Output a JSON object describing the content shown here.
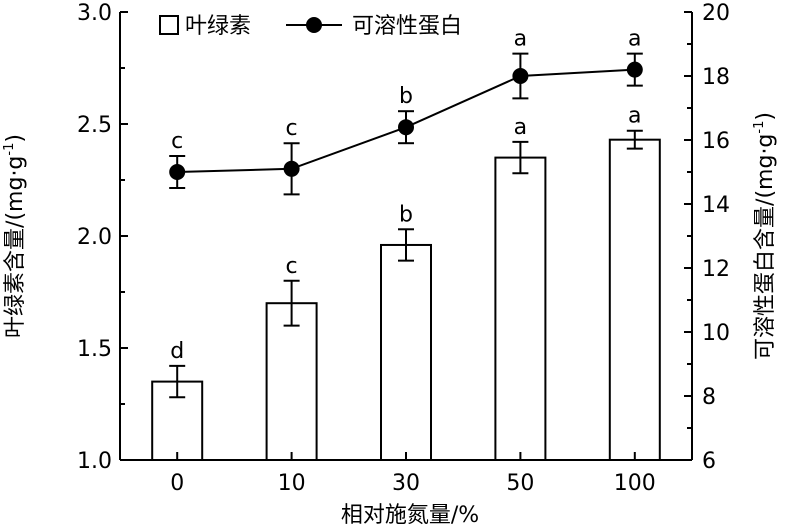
{
  "chart_data": {
    "type": "bar+line",
    "categories": [
      "0",
      "10",
      "30",
      "50",
      "100"
    ],
    "xlabel": "相对施氮量/%",
    "series": [
      {
        "name": "叶绿素",
        "type": "bar",
        "axis": "left",
        "values": [
          1.35,
          1.7,
          1.96,
          2.35,
          2.43
        ],
        "errors": [
          0.07,
          0.1,
          0.07,
          0.07,
          0.04
        ],
        "labels": [
          "d",
          "c",
          "b",
          "a",
          "a"
        ]
      },
      {
        "name": "可溶性蛋白",
        "type": "line",
        "axis": "right",
        "values": [
          15.0,
          15.1,
          16.4,
          18.0,
          18.2
        ],
        "errors": [
          0.5,
          0.8,
          0.5,
          0.7,
          0.5
        ],
        "labels": [
          "c",
          "c",
          "b",
          "a",
          "a"
        ]
      }
    ],
    "y_left": {
      "label_main": "叶绿素含量/(mg·g",
      "label_sup": "-1",
      "label_end": ")",
      "ylim": [
        1.0,
        3.0
      ],
      "ticks": [
        "1.0",
        "1.5",
        "2.0",
        "2.5",
        "3.0"
      ]
    },
    "y_right": {
      "label_main": "可溶性蛋白含量/(mg·g",
      "label_sup": "-1",
      "label_end": ")",
      "ylim": [
        6,
        20
      ],
      "ticks": [
        "6",
        "8",
        "10",
        "12",
        "14",
        "16",
        "18",
        "20"
      ]
    },
    "legend_position": "top-left",
    "grid": false
  }
}
